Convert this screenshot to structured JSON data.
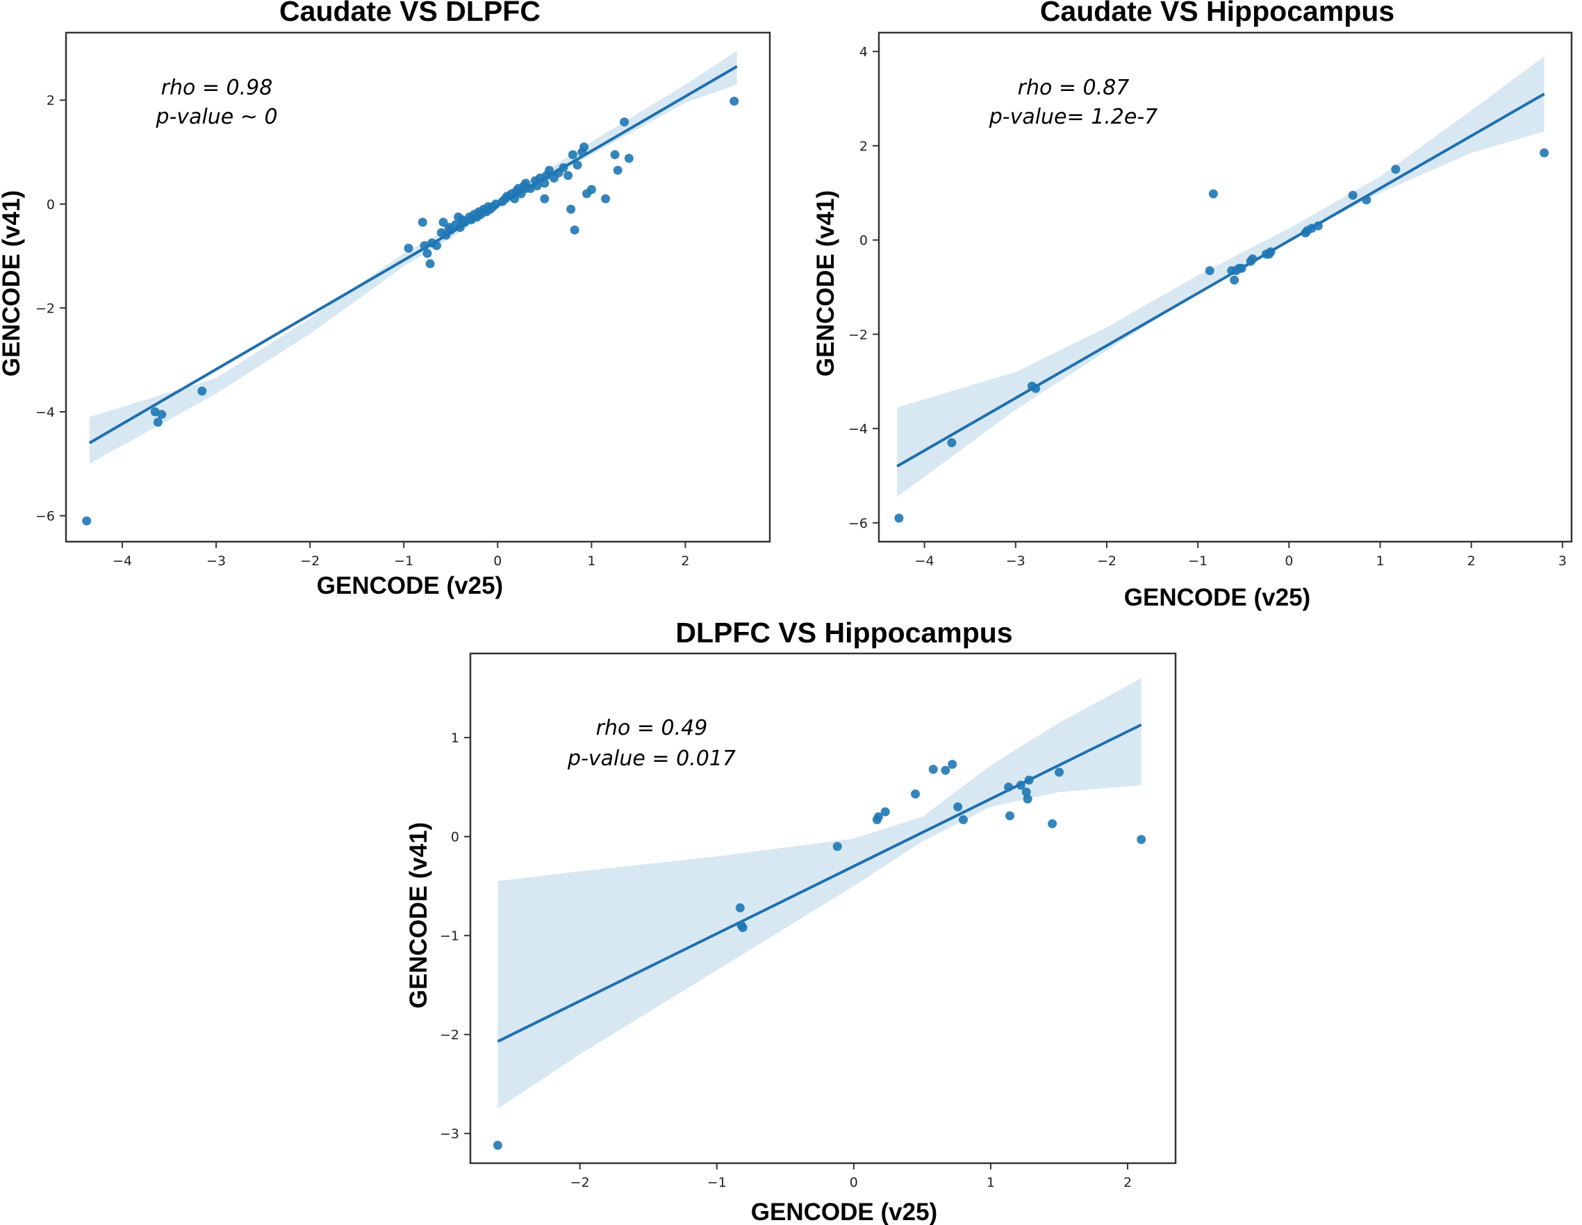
{
  "chart_data": [
    {
      "type": "scatter",
      "title": "Caudate VS DLPFC",
      "xlabel": "GENCODE (v25)",
      "ylabel": "GENCODE (v41)",
      "xlim": [
        -4.6,
        2.9
      ],
      "ylim": [
        -6.5,
        3.3
      ],
      "xticks": [
        -4,
        -3,
        -2,
        -1,
        0,
        1,
        2
      ],
      "yticks": [
        -6,
        -4,
        -2,
        0,
        2
      ],
      "annotations": [
        "rho = 0.98",
        "p-value ~ 0"
      ],
      "fit": {
        "x": [
          -4.35,
          2.55
        ],
        "y": [
          -4.6,
          2.65
        ]
      },
      "ci_band": {
        "x": [
          -4.35,
          -3.0,
          -2.0,
          -1.0,
          0.0,
          1.0,
          2.0,
          2.55
        ],
        "lower": [
          -5.0,
          -3.65,
          -2.5,
          -1.2,
          -0.1,
          0.95,
          1.95,
          2.3
        ],
        "upper": [
          -4.1,
          -3.35,
          -2.2,
          -0.95,
          0.05,
          1.2,
          2.3,
          2.95
        ]
      },
      "x": [
        -4.38,
        -3.65,
        -3.62,
        -3.58,
        -3.15,
        -0.95,
        -0.8,
        -0.78,
        -0.75,
        -0.72,
        -0.7,
        -0.65,
        -0.6,
        -0.58,
        -0.55,
        -0.52,
        -0.5,
        -0.45,
        -0.42,
        -0.4,
        -0.38,
        -0.35,
        -0.3,
        -0.28,
        -0.25,
        -0.22,
        -0.2,
        -0.18,
        -0.15,
        -0.12,
        -0.1,
        -0.08,
        -0.05,
        -0.02,
        0.05,
        0.08,
        0.1,
        0.15,
        0.18,
        0.2,
        0.22,
        0.25,
        0.28,
        0.3,
        0.35,
        0.4,
        0.42,
        0.45,
        0.5,
        0.52,
        0.55,
        0.6,
        0.65,
        0.7,
        0.75,
        0.8,
        0.82,
        0.85,
        0.9,
        0.92,
        0.95,
        1.0,
        1.15,
        1.25,
        1.28,
        1.35,
        1.4,
        2.52,
        0.78,
        0.5,
        0.3
      ],
      "y": [
        -6.1,
        -4.0,
        -4.2,
        -4.05,
        -3.6,
        -0.85,
        -0.35,
        -0.8,
        -0.95,
        -1.15,
        -0.75,
        -0.8,
        -0.55,
        -0.35,
        -0.6,
        -0.45,
        -0.5,
        -0.4,
        -0.25,
        -0.45,
        -0.3,
        -0.35,
        -0.25,
        -0.3,
        -0.2,
        -0.25,
        -0.15,
        -0.2,
        -0.1,
        -0.15,
        -0.05,
        -0.1,
        -0.05,
        0.0,
        0.05,
        0.1,
        0.15,
        0.2,
        0.1,
        0.25,
        0.3,
        0.2,
        0.35,
        0.4,
        0.3,
        0.45,
        0.35,
        0.5,
        0.4,
        0.55,
        0.65,
        0.5,
        0.6,
        0.7,
        0.55,
        0.95,
        -0.5,
        0.75,
        1.0,
        1.1,
        0.2,
        0.28,
        0.1,
        0.95,
        0.65,
        1.58,
        0.88,
        1.98,
        -0.1,
        0.1,
        0.3
      ]
    },
    {
      "type": "scatter",
      "title": "Caudate VS Hippocampus",
      "xlabel": "GENCODE (v25)",
      "ylabel": "GENCODE (v41)",
      "xlim": [
        -4.5,
        3.1
      ],
      "ylim": [
        -6.4,
        4.4
      ],
      "xticks": [
        -4,
        -3,
        -2,
        -1,
        0,
        1,
        2,
        3
      ],
      "yticks": [
        -6,
        -4,
        -2,
        0,
        2,
        4
      ],
      "annotations": [
        "rho = 0.87",
        "p-value= 1.2e-7"
      ],
      "fit": {
        "x": [
          -4.3,
          2.8
        ],
        "y": [
          -4.8,
          3.1
        ]
      },
      "ci_band": {
        "x": [
          -4.3,
          -3.0,
          -2.0,
          -1.0,
          0.0,
          1.0,
          2.0,
          2.8
        ],
        "lower": [
          -5.45,
          -3.6,
          -2.35,
          -1.1,
          0.0,
          1.0,
          1.85,
          2.3
        ],
        "upper": [
          -3.55,
          -2.8,
          -1.85,
          -0.75,
          0.25,
          1.35,
          2.75,
          3.9
        ]
      },
      "x": [
        -4.28,
        -3.7,
        -2.82,
        -2.78,
        -0.87,
        -0.83,
        -0.63,
        -0.6,
        -0.58,
        -0.55,
        -0.52,
        -0.42,
        -0.4,
        -0.25,
        -0.22,
        -0.2,
        0.18,
        0.2,
        0.25,
        0.32,
        0.7,
        0.85,
        1.17,
        2.8
      ],
      "y": [
        -5.9,
        -4.3,
        -3.1,
        -3.15,
        -0.65,
        0.98,
        -0.65,
        -0.85,
        -0.65,
        -0.6,
        -0.6,
        -0.45,
        -0.4,
        -0.3,
        -0.3,
        -0.25,
        0.15,
        0.2,
        0.25,
        0.3,
        0.95,
        0.85,
        1.5,
        1.85
      ]
    },
    {
      "type": "scatter",
      "title": "DLPFC VS Hippocampus",
      "xlabel": "GENCODE (v25)",
      "ylabel": "GENCODE (v41)",
      "xlim": [
        -2.8,
        2.35
      ],
      "ylim": [
        -3.3,
        1.85
      ],
      "xticks": [
        -2,
        -1,
        0,
        1,
        2
      ],
      "yticks": [
        -3,
        -2,
        -1,
        0,
        1
      ],
      "annotations": [
        "rho = 0.49",
        "p-value = 0.017"
      ],
      "fit": {
        "x": [
          -2.6,
          2.1
        ],
        "y": [
          -2.07,
          1.13
        ]
      },
      "ci_band": {
        "x": [
          -2.6,
          -2.0,
          -1.0,
          0.0,
          0.5,
          1.0,
          1.5,
          2.1
        ],
        "lower": [
          -2.75,
          -2.2,
          -1.35,
          -0.5,
          -0.05,
          0.3,
          0.45,
          0.52
        ],
        "upper": [
          -0.45,
          -0.35,
          -0.2,
          -0.02,
          0.2,
          0.72,
          1.15,
          1.6
        ]
      },
      "x": [
        -2.6,
        -0.83,
        -0.82,
        -0.81,
        -0.12,
        0.17,
        0.18,
        0.23,
        0.45,
        0.58,
        0.67,
        0.72,
        0.76,
        0.8,
        1.13,
        1.14,
        1.22,
        1.26,
        1.27,
        1.28,
        1.45,
        1.5,
        2.1
      ],
      "y": [
        -3.12,
        -0.72,
        -0.9,
        -0.92,
        -0.1,
        0.17,
        0.2,
        0.25,
        0.43,
        0.68,
        0.67,
        0.73,
        0.3,
        0.17,
        0.5,
        0.21,
        0.52,
        0.45,
        0.38,
        0.57,
        0.13,
        0.65,
        -0.03
      ]
    }
  ]
}
